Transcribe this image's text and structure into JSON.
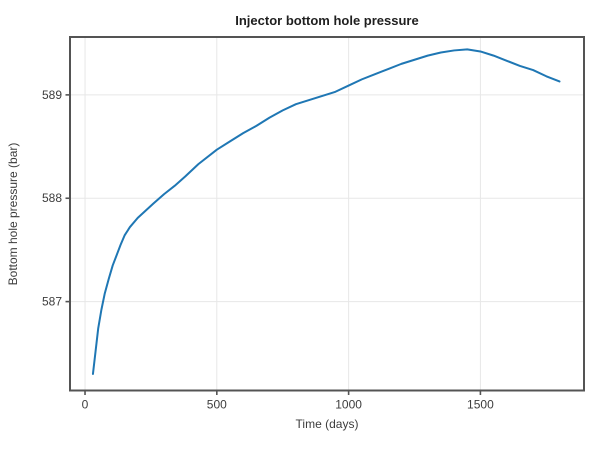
{
  "chart_data": {
    "type": "line",
    "title": "Injector bottom hole pressure",
    "xlabel": "Time (days)",
    "ylabel": "Bottom hole pressure (bar)",
    "xlim": [
      -57,
      1893
    ],
    "ylim": [
      586.14,
      589.56
    ],
    "xticks": [
      0,
      500,
      1000,
      1500
    ],
    "xtick_labels": [
      "0",
      "500",
      "1000",
      "1500"
    ],
    "yticks": [
      587,
      588,
      589
    ],
    "ytick_labels": [
      "587",
      "588",
      "589"
    ],
    "grid": true,
    "legend": "none",
    "series": [
      {
        "name": "injector-bhp",
        "color": "#1f77b4",
        "x": [
          30,
          40,
          50,
          62,
          75,
          90,
          105,
          120,
          135,
          150,
          170,
          200,
          230,
          260,
          300,
          340,
          380,
          430,
          500,
          550,
          600,
          650,
          700,
          750,
          800,
          850,
          900,
          950,
          1000,
          1050,
          1100,
          1150,
          1200,
          1250,
          1300,
          1350,
          1400,
          1450,
          1500,
          1550,
          1600,
          1650,
          1700,
          1750,
          1800
        ],
        "y": [
          586.3,
          586.52,
          586.74,
          586.92,
          587.08,
          587.22,
          587.35,
          587.45,
          587.55,
          587.64,
          587.72,
          587.81,
          587.88,
          587.95,
          588.04,
          588.12,
          588.21,
          588.33,
          588.47,
          588.55,
          588.63,
          588.7,
          588.78,
          588.85,
          588.91,
          588.95,
          588.99,
          589.03,
          589.09,
          589.15,
          589.2,
          589.25,
          589.3,
          589.34,
          589.38,
          589.41,
          589.43,
          589.44,
          589.42,
          589.38,
          589.33,
          589.28,
          589.24,
          589.18,
          589.13
        ]
      }
    ],
    "style": {
      "line_color": "#1f77b4",
      "grid_color": "#e7e7e7",
      "spine_color": "#545454",
      "tick_color": "#545454",
      "background": "#ffffff"
    }
  }
}
